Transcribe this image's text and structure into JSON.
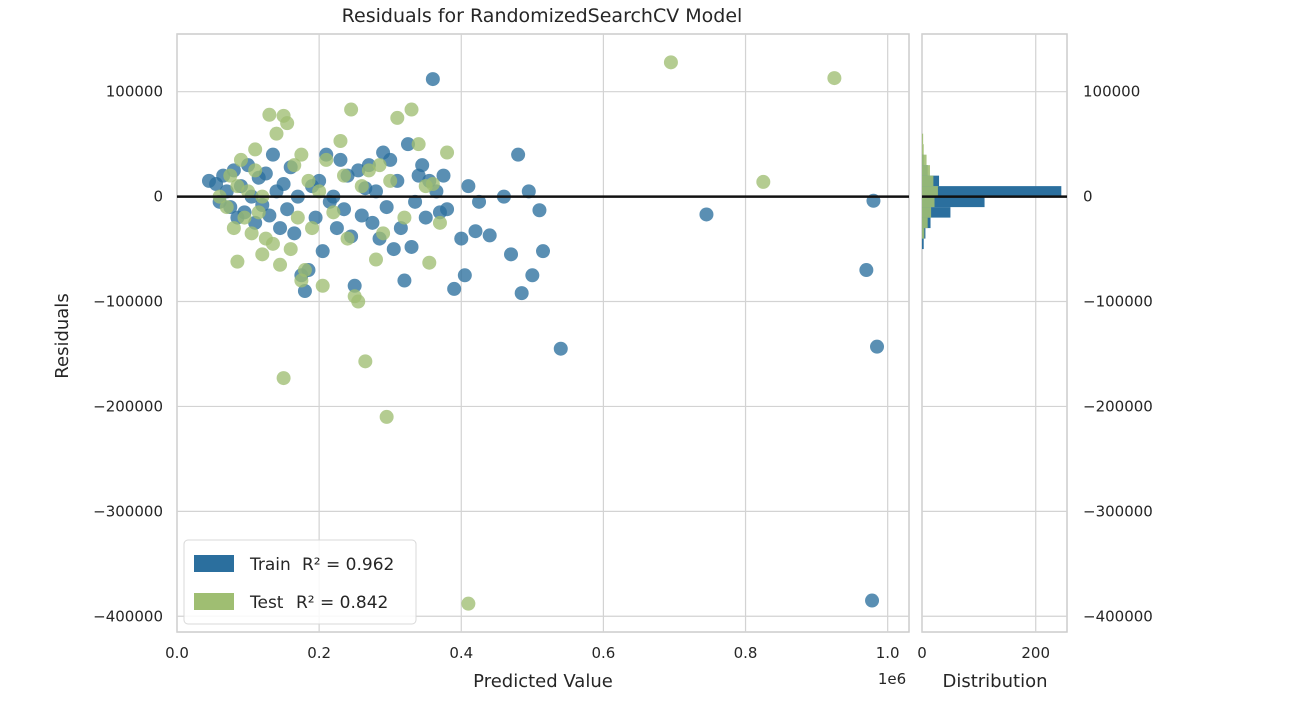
{
  "chart_data": {
    "type": "scatter",
    "title": "Residuals for RandomizedSearchCV Model",
    "xlabel": "Predicted Value",
    "ylabel": "Residuals",
    "x_offset_label": "1e6",
    "xlim": [
      0,
      1.03
    ],
    "ylim": [
      -415000,
      155000
    ],
    "x_ticks": [
      0.0,
      0.2,
      0.4,
      0.6,
      0.8,
      1.0
    ],
    "x_tick_labels": [
      "0.0",
      "0.2",
      "0.4",
      "0.6",
      "0.8",
      "1.0"
    ],
    "y_ticks": [
      100000,
      0,
      -100000,
      -200000,
      -300000,
      -400000
    ],
    "y_tick_labels": [
      "100000",
      "0",
      "−100000",
      "−200000",
      "−300000",
      "−400000"
    ],
    "grid": true,
    "zero_line": 0,
    "legend_position": "lower-left",
    "series": [
      {
        "name": "Train",
        "legend_label": "Train",
        "legend_stat": "R² = 0.962",
        "color": "#2b6f9e",
        "points": [
          [
            0.045,
            15000
          ],
          [
            0.055,
            12000
          ],
          [
            0.06,
            -5000
          ],
          [
            0.065,
            20000
          ],
          [
            0.07,
            5000
          ],
          [
            0.075,
            -10000
          ],
          [
            0.08,
            25000
          ],
          [
            0.085,
            -20000
          ],
          [
            0.09,
            10000
          ],
          [
            0.095,
            -15000
          ],
          [
            0.1,
            30000
          ],
          [
            0.105,
            0
          ],
          [
            0.11,
            -25000
          ],
          [
            0.115,
            18000
          ],
          [
            0.12,
            -8000
          ],
          [
            0.125,
            22000
          ],
          [
            0.13,
            -18000
          ],
          [
            0.135,
            40000
          ],
          [
            0.14,
            5000
          ],
          [
            0.145,
            -30000
          ],
          [
            0.15,
            12000
          ],
          [
            0.155,
            -12000
          ],
          [
            0.16,
            28000
          ],
          [
            0.165,
            -35000
          ],
          [
            0.17,
            0
          ],
          [
            0.175,
            -75000
          ],
          [
            0.18,
            -90000
          ],
          [
            0.185,
            -70000
          ],
          [
            0.19,
            10000
          ],
          [
            0.195,
            -20000
          ],
          [
            0.2,
            15000
          ],
          [
            0.205,
            -52000
          ],
          [
            0.21,
            40000
          ],
          [
            0.215,
            -5000
          ],
          [
            0.22,
            0
          ],
          [
            0.225,
            -30000
          ],
          [
            0.23,
            35000
          ],
          [
            0.235,
            -12000
          ],
          [
            0.24,
            20000
          ],
          [
            0.245,
            -38000
          ],
          [
            0.25,
            -85000
          ],
          [
            0.255,
            25000
          ],
          [
            0.26,
            -18000
          ],
          [
            0.265,
            8000
          ],
          [
            0.27,
            30000
          ],
          [
            0.275,
            -25000
          ],
          [
            0.28,
            5000
          ],
          [
            0.285,
            -40000
          ],
          [
            0.29,
            42000
          ],
          [
            0.295,
            -10000
          ],
          [
            0.3,
            35000
          ],
          [
            0.305,
            -50000
          ],
          [
            0.31,
            15000
          ],
          [
            0.315,
            -30000
          ],
          [
            0.32,
            -80000
          ],
          [
            0.325,
            50000
          ],
          [
            0.33,
            -48000
          ],
          [
            0.335,
            -5000
          ],
          [
            0.34,
            20000
          ],
          [
            0.345,
            30000
          ],
          [
            0.35,
            -20000
          ],
          [
            0.355,
            15000
          ],
          [
            0.36,
            112000
          ],
          [
            0.365,
            5000
          ],
          [
            0.37,
            -15000
          ],
          [
            0.375,
            20000
          ],
          [
            0.38,
            -12000
          ],
          [
            0.39,
            -88000
          ],
          [
            0.4,
            -40000
          ],
          [
            0.405,
            -75000
          ],
          [
            0.41,
            10000
          ],
          [
            0.42,
            -33000
          ],
          [
            0.425,
            -5000
          ],
          [
            0.44,
            -37000
          ],
          [
            0.46,
            0
          ],
          [
            0.47,
            -55000
          ],
          [
            0.48,
            40000
          ],
          [
            0.485,
            -92000
          ],
          [
            0.495,
            5000
          ],
          [
            0.5,
            -75000
          ],
          [
            0.51,
            -13000
          ],
          [
            0.515,
            -52000
          ],
          [
            0.54,
            -145000
          ],
          [
            0.745,
            -17000
          ],
          [
            0.97,
            -70000
          ],
          [
            0.98,
            -4000
          ],
          [
            0.985,
            -143000
          ],
          [
            0.978,
            -385000
          ]
        ]
      },
      {
        "name": "Test",
        "legend_label": "Test",
        "legend_stat": "R² = 0.842",
        "color": "#9fbe72",
        "points": [
          [
            0.06,
            0
          ],
          [
            0.07,
            -10000
          ],
          [
            0.075,
            20000
          ],
          [
            0.08,
            -30000
          ],
          [
            0.085,
            10000
          ],
          [
            0.09,
            35000
          ],
          [
            0.095,
            -20000
          ],
          [
            0.1,
            5000
          ],
          [
            0.105,
            -35000
          ],
          [
            0.11,
            25000
          ],
          [
            0.115,
            -15000
          ],
          [
            0.12,
            0
          ],
          [
            0.125,
            -40000
          ],
          [
            0.13,
            78000
          ],
          [
            0.135,
            -45000
          ],
          [
            0.14,
            60000
          ],
          [
            0.145,
            -65000
          ],
          [
            0.15,
            77000
          ],
          [
            0.155,
            70000
          ],
          [
            0.16,
            -50000
          ],
          [
            0.165,
            30000
          ],
          [
            0.17,
            -20000
          ],
          [
            0.175,
            40000
          ],
          [
            0.18,
            -70000
          ],
          [
            0.185,
            15000
          ],
          [
            0.19,
            -30000
          ],
          [
            0.2,
            5000
          ],
          [
            0.205,
            -85000
          ],
          [
            0.21,
            35000
          ],
          [
            0.22,
            -15000
          ],
          [
            0.23,
            53000
          ],
          [
            0.235,
            20000
          ],
          [
            0.24,
            -40000
          ],
          [
            0.245,
            83000
          ],
          [
            0.25,
            -95000
          ],
          [
            0.255,
            -100000
          ],
          [
            0.26,
            10000
          ],
          [
            0.265,
            -157000
          ],
          [
            0.27,
            25000
          ],
          [
            0.28,
            -60000
          ],
          [
            0.285,
            30000
          ],
          [
            0.29,
            -35000
          ],
          [
            0.295,
            -210000
          ],
          [
            0.3,
            15000
          ],
          [
            0.31,
            75000
          ],
          [
            0.32,
            -20000
          ],
          [
            0.33,
            83000
          ],
          [
            0.34,
            50000
          ],
          [
            0.35,
            10000
          ],
          [
            0.355,
            -63000
          ],
          [
            0.36,
            12000
          ],
          [
            0.37,
            -25000
          ],
          [
            0.38,
            42000
          ],
          [
            0.41,
            -388000
          ],
          [
            0.695,
            128000
          ],
          [
            0.825,
            14000
          ],
          [
            0.925,
            113000
          ],
          [
            0.15,
            -173000
          ],
          [
            0.085,
            -62000
          ],
          [
            0.11,
            45000
          ],
          [
            0.12,
            -55000
          ],
          [
            0.175,
            -80000
          ]
        ]
      }
    ],
    "distribution": {
      "xlabel": "Distribution",
      "x_ticks": [
        0,
        200
      ],
      "x_tick_labels": [
        "0",
        "200"
      ],
      "xlim": [
        0,
        255
      ],
      "bin_width": 10000,
      "train_bins": [
        {
          "y": 35000,
          "count": 3
        },
        {
          "y": 25000,
          "count": 10
        },
        {
          "y": 15000,
          "count": 30
        },
        {
          "y": 5000,
          "count": 245
        },
        {
          "y": -5000,
          "count": 110
        },
        {
          "y": -15000,
          "count": 50
        },
        {
          "y": -25000,
          "count": 15
        },
        {
          "y": -35000,
          "count": 6
        },
        {
          "y": -45000,
          "count": 3
        }
      ],
      "test_bins": [
        {
          "y": 55000,
          "count": 2
        },
        {
          "y": 45000,
          "count": 3
        },
        {
          "y": 35000,
          "count": 8
        },
        {
          "y": 25000,
          "count": 14
        },
        {
          "y": 15000,
          "count": 20
        },
        {
          "y": 5000,
          "count": 28
        },
        {
          "y": -5000,
          "count": 22
        },
        {
          "y": -15000,
          "count": 16
        },
        {
          "y": -25000,
          "count": 10
        },
        {
          "y": -35000,
          "count": 4
        }
      ]
    }
  }
}
